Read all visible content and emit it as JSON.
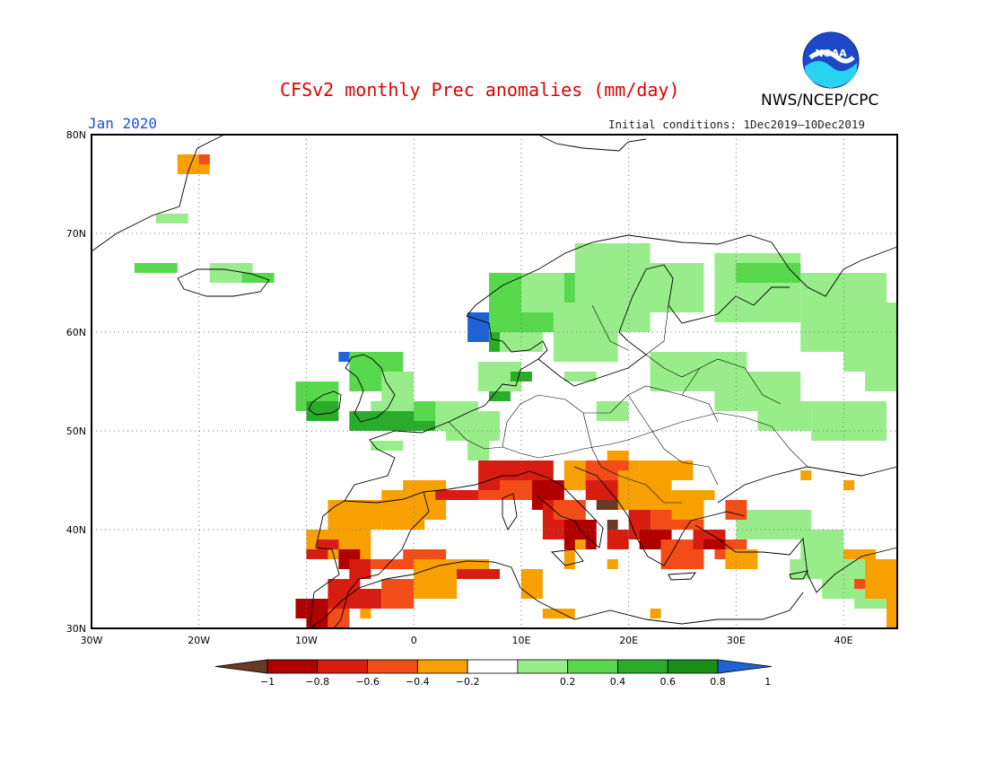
{
  "header": {
    "title": "CFSv2 monthly Prec anomalies (mm/day)",
    "agency": "NWS/NCEP/CPC",
    "month": "Jan 2020",
    "initial_conditions": "Initial conditions: 1Dec2019—10Dec2019",
    "logo_text": "NOAA"
  },
  "map": {
    "projection": "lat-lon",
    "lon_range": [
      -30,
      45
    ],
    "lat_range": [
      30,
      80
    ],
    "lon_tick_labels": [
      "30W",
      "20W",
      "10W",
      "0",
      "10E",
      "20E",
      "30E",
      "40E"
    ],
    "lat_tick_labels": [
      "30N",
      "40N",
      "50N",
      "60N",
      "70N",
      "80N"
    ],
    "grid": "dotted",
    "colors": {
      "lt_-1": "#6b3a26",
      "-1_-0.8": "#b00000",
      "-0.8_-0.6": "#d71d12",
      "-0.6_-0.4": "#f24d18",
      "-0.4_-0.2": "#f7a000",
      "-0.2_0.2": "#ffffff",
      "0.2_0.4": "#99ec8a",
      "0.4_0.6": "#58d84d",
      "0.6_0.8": "#2aac2a",
      "0.8_1": "#189018",
      "gt_1": "#1f62d6"
    }
  },
  "colorbar": {
    "levels": [
      "−1",
      "−0.8",
      "−0.6",
      "−0.4",
      "−0.2",
      "0.2",
      "0.4",
      "0.6",
      "0.8",
      "1"
    ],
    "colors": [
      "#6b3a26",
      "#b00000",
      "#d71d12",
      "#f24d18",
      "#f7a000",
      "#ffffff",
      "#99ec8a",
      "#58d84d",
      "#2aac2a",
      "#189018",
      "#1f62d6"
    ]
  }
}
